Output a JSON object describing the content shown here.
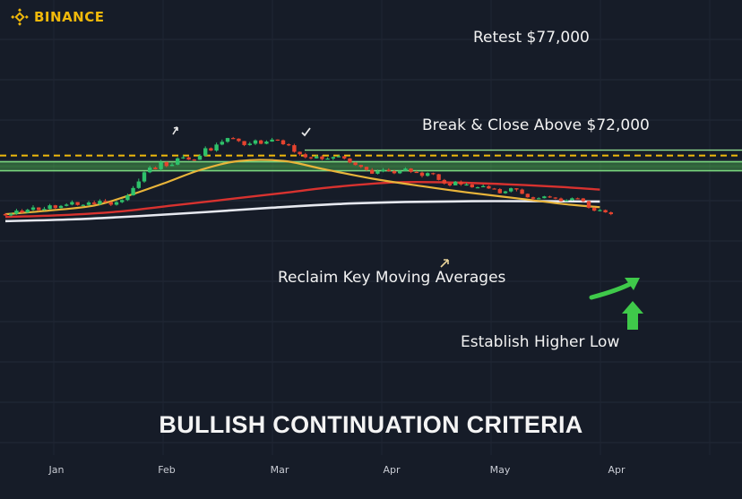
{
  "brand": {
    "name": "BINANCE",
    "icon": "binance-logo-icon",
    "color": "#f0b90b"
  },
  "title": "BULLISH CONTINUATION CRITERIA",
  "annotations": {
    "retest": "Retest $77,000",
    "breakout": "Break & Close Above $72,000",
    "reclaim": "Reclaim Key Moving Averages",
    "higher_low": "Establish Higher Low"
  },
  "colors": {
    "background": "#161c28",
    "up_candle": "#2ec16a",
    "down_candle": "#e5432f",
    "zone": "#4caf50",
    "retest_line": "#f0b90b",
    "ma_short": "#e8b43a",
    "ma_mid": "#d8322f",
    "ma_long": "#e6e8ef",
    "arrow": "#3fc94a"
  },
  "chart_data": {
    "type": "candlestick",
    "x_ticks": [
      "Jan",
      "Feb",
      "Mar",
      "Apr",
      "May",
      "Apr"
    ],
    "levels": {
      "retest": 77000,
      "breakout": 72000
    },
    "zone": [
      69500,
      72000
    ],
    "candles": [
      [
        57420,
        57050,
        57720,
        56870
      ],
      [
        57050,
        57480,
        57800,
        56730
      ],
      [
        57480,
        58380,
        58890,
        57200
      ],
      [
        58380,
        57830,
        58810,
        57680
      ],
      [
        57830,
        58610,
        58910,
        57730
      ],
      [
        58610,
        59260,
        59880,
        58350
      ],
      [
        59260,
        58530,
        59320,
        58180
      ],
      [
        58530,
        58840,
        59420,
        58370
      ],
      [
        58840,
        59850,
        60250,
        58570
      ],
      [
        59850,
        59110,
        59980,
        58750
      ],
      [
        59110,
        59700,
        59930,
        59020
      ],
      [
        59700,
        60060,
        60430,
        59550
      ],
      [
        60060,
        60770,
        61230,
        59840
      ],
      [
        60770,
        59950,
        60780,
        59770
      ],
      [
        59950,
        59970,
        60160,
        59690
      ],
      [
        59970,
        60640,
        61070,
        59680
      ],
      [
        60640,
        60200,
        61180,
        60020
      ],
      [
        60200,
        61100,
        61550,
        59840
      ],
      [
        61100,
        60750,
        61610,
        60610
      ],
      [
        60750,
        60020,
        60860,
        59650
      ],
      [
        60020,
        60740,
        61080,
        59760
      ],
      [
        60740,
        61330,
        61560,
        60460
      ],
      [
        61330,
        62640,
        63110,
        61060
      ],
      [
        62640,
        64690,
        65220,
        62550
      ],
      [
        64690,
        66510,
        67310,
        64420
      ],
      [
        66510,
        69070,
        69350,
        66140
      ],
      [
        69070,
        70390,
        70880,
        68830
      ],
      [
        70390,
        69930,
        70700,
        69860
      ],
      [
        69930,
        71950,
        72570,
        69500
      ],
      [
        71950,
        70810,
        72030,
        70500
      ],
      [
        70810,
        71200,
        71690,
        70850
      ],
      [
        71200,
        72960,
        73270,
        71040
      ],
      [
        72960,
        73240,
        73890,
        72820
      ],
      [
        73240,
        72630,
        73450,
        72510
      ],
      [
        72630,
        72580,
        72780,
        72220
      ],
      [
        72580,
        73710,
        74160,
        72540
      ],
      [
        73710,
        75790,
        76310,
        73490
      ],
      [
        75790,
        75130,
        76000,
        74980
      ],
      [
        75130,
        76810,
        77340,
        74790
      ],
      [
        76810,
        77590,
        78200,
        76610
      ],
      [
        77590,
        78630,
        78690,
        77260
      ],
      [
        78630,
        78460,
        78920,
        78360
      ],
      [
        78460,
        77780,
        78570,
        77510
      ],
      [
        77780,
        76670,
        77820,
        76370
      ],
      [
        76670,
        77050,
        77530,
        76480
      ],
      [
        77050,
        77970,
        78250,
        76690
      ],
      [
        77970,
        77030,
        78160,
        76880
      ],
      [
        77030,
        77640,
        77990,
        76880
      ],
      [
        77640,
        78200,
        78670,
        77600
      ],
      [
        78200,
        78010,
        78250,
        77850
      ],
      [
        78010,
        76890,
        78210,
        76680
      ],
      [
        76890,
        76630,
        77150,
        76370
      ],
      [
        76630,
        74790,
        77020,
        74540
      ],
      [
        74790,
        74100,
        74840,
        73690
      ],
      [
        74100,
        73270,
        74490,
        72940
      ],
      [
        73270,
        72960,
        73420,
        72700
      ],
      [
        72960,
        73480,
        73910,
        72890
      ],
      [
        73480,
        72740,
        73840,
        72450
      ],
      [
        72740,
        72910,
        73270,
        72780
      ],
      [
        72910,
        73310,
        73470,
        72460
      ],
      [
        73310,
        73550,
        73860,
        73240
      ],
      [
        73550,
        72940,
        73620,
        72640
      ],
      [
        72940,
        71800,
        73050,
        71580
      ],
      [
        71800,
        71090,
        71950,
        70970
      ],
      [
        71090,
        70600,
        71180,
        70220
      ],
      [
        70600,
        69740,
        70660,
        69460
      ],
      [
        69740,
        68680,
        70250,
        68620
      ],
      [
        68680,
        69330,
        69860,
        68460
      ],
      [
        69330,
        69780,
        70260,
        69070
      ],
      [
        69780,
        69390,
        70200,
        69210
      ],
      [
        69390,
        68800,
        69760,
        68550
      ],
      [
        68800,
        69470,
        69570,
        68600
      ],
      [
        69470,
        70110,
        70480,
        69820
      ],
      [
        70110,
        69180,
        70250,
        68870
      ],
      [
        69180,
        68980,
        69510,
        68880
      ],
      [
        68980,
        68080,
        69240,
        67610
      ],
      [
        68080,
        68840,
        69060,
        67870
      ],
      [
        68840,
        68540,
        68970,
        68310
      ],
      [
        68540,
        66930,
        68630,
        66780
      ],
      [
        66930,
        65940,
        67210,
        65640
      ],
      [
        65940,
        65420,
        66240,
        65110
      ],
      [
        65420,
        66460,
        66660,
        65420
      ],
      [
        66460,
        65680,
        66800,
        65290
      ],
      [
        65680,
        65680,
        66130,
        65350
      ],
      [
        65680,
        64880,
        65930,
        64730
      ],
      [
        64880,
        64890,
        65080,
        64660
      ],
      [
        64890,
        65210,
        65670,
        65080
      ],
      [
        65210,
        64550,
        65460,
        64430
      ],
      [
        64550,
        64390,
        64700,
        64280
      ],
      [
        64390,
        63240,
        64670,
        63130
      ],
      [
        63240,
        63740,
        63910,
        63050
      ],
      [
        63740,
        64620,
        64800,
        63450
      ],
      [
        64620,
        64260,
        64660,
        63750
      ],
      [
        64260,
        63060,
        64510,
        62960
      ],
      [
        63060,
        62100,
        63160,
        61980
      ],
      [
        62100,
        61700,
        62270,
        61300
      ],
      [
        61700,
        61840,
        62090,
        61630
      ],
      [
        61840,
        62340,
        62500,
        61770
      ],
      [
        62340,
        62030,
        62560,
        61920
      ],
      [
        62030,
        61770,
        62140,
        61550
      ],
      [
        61770,
        61020,
        62040,
        60890
      ],
      [
        61020,
        61280,
        61550,
        61060
      ],
      [
        61280,
        61830,
        62050,
        61140
      ],
      [
        61830,
        61770,
        62020,
        61640
      ],
      [
        61770,
        61020,
        61910,
        60760
      ],
      [
        61020,
        59180,
        61160,
        58920
      ],
      [
        59180,
        58360,
        59290,
        58190
      ],
      [
        58360,
        58530,
        58830,
        58140
      ],
      [
        58530,
        57890,
        58690,
        57780
      ],
      [
        57890,
        57410,
        58130,
        57100
      ]
    ],
    "ma_short": [
      [
        0,
        57360
      ],
      [
        8,
        58410
      ],
      [
        16,
        59800
      ],
      [
        22,
        62490
      ],
      [
        29,
        66250
      ],
      [
        35,
        69680
      ],
      [
        42,
        72220
      ],
      [
        50,
        72240
      ],
      [
        57,
        70050
      ],
      [
        66,
        67310
      ],
      [
        75,
        65200
      ],
      [
        83,
        63480
      ],
      [
        92,
        61820
      ],
      [
        101,
        60130
      ],
      [
        107,
        59340
      ]
    ],
    "ma_mid": [
      [
        0,
        56600
      ],
      [
        10,
        57100
      ],
      [
        20,
        58060
      ],
      [
        30,
        59780
      ],
      [
        40,
        61530
      ],
      [
        50,
        63290
      ],
      [
        59,
        64940
      ],
      [
        70,
        66260
      ],
      [
        80,
        66240
      ],
      [
        90,
        65740
      ],
      [
        100,
        64970
      ],
      [
        107,
        64240
      ]
    ],
    "ma_long": [
      [
        0,
        55440
      ],
      [
        12,
        55930
      ],
      [
        24,
        56840
      ],
      [
        36,
        57960
      ],
      [
        48,
        59190
      ],
      [
        60,
        60230
      ],
      [
        72,
        60780
      ],
      [
        84,
        61010
      ],
      [
        96,
        61000
      ],
      [
        107,
        60920
      ]
    ]
  }
}
